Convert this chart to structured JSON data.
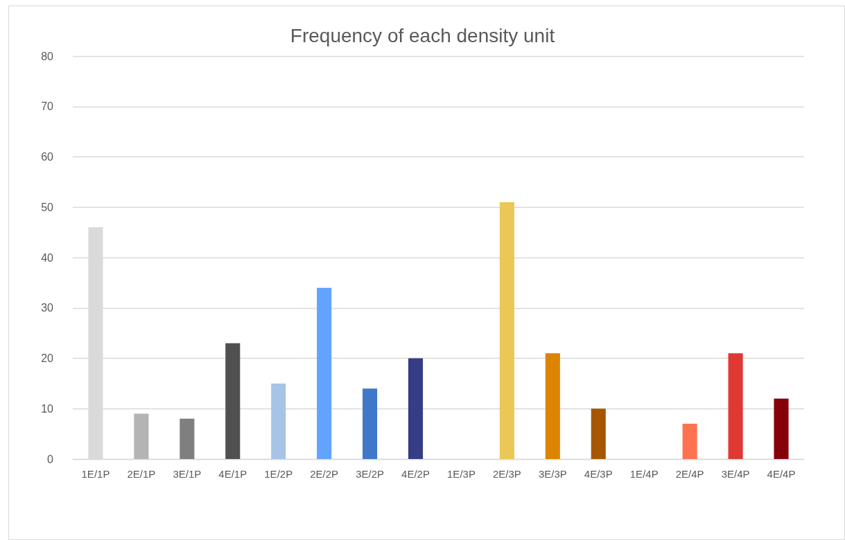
{
  "chart_data": {
    "type": "bar",
    "title": "Frequency of each density unit",
    "categories": [
      "1E/1P",
      "2E/1P",
      "3E/1P",
      "4E/1P",
      "1E/2P",
      "2E/2P",
      "3E/2P",
      "4E/2P",
      "1E/3P",
      "2E/3P",
      "3E/3P",
      "4E/3P",
      "1E/4P",
      "2E/4P",
      "3E/4P",
      "4E/4P"
    ],
    "values": [
      46,
      9,
      8,
      23,
      15,
      34,
      14,
      20,
      0,
      51,
      21,
      10,
      0,
      7,
      21,
      12
    ],
    "colors": [
      "#dadada",
      "#b4b4b4",
      "#7f7f7f",
      "#505050",
      "#a7c4e8",
      "#62a3fd",
      "#3f78c9",
      "#343d85",
      "#cccccc",
      "#eac757",
      "#dc8400",
      "#a75600",
      "#ff7050",
      "#ff7250",
      "#e03833",
      "#860009"
    ],
    "ylim": [
      0,
      80
    ],
    "yticks": [
      0,
      10,
      20,
      30,
      40,
      50,
      60,
      70,
      80
    ],
    "grid": "y"
  }
}
